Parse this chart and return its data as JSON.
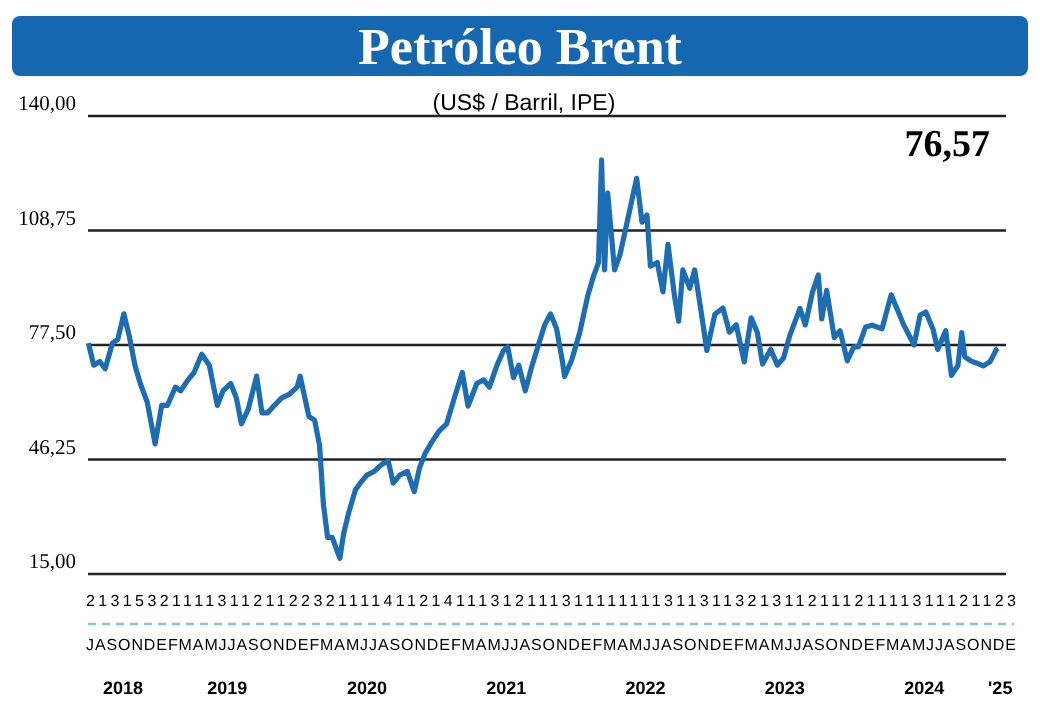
{
  "chart_data": {
    "type": "line",
    "title": "Petróleo Brent",
    "subtitle": "(US$ / Barril, IPE)",
    "annotations": [
      "76,57",
      "2131532111131121122321111411214111312111311111111311311321311211121111311121123",
      "JASONDEFMAMJJASONDEFMAMJJASONDEFMAMJJASONDEFMAMJJASONDEFMAMJJASONDEFMAMJJASONDE"
    ],
    "xlim": [
      "2018-07-01",
      "2025-01-31"
    ],
    "xticks": [
      {
        "value": "2018-10-01",
        "label": "2018"
      },
      {
        "value": "2019-07-01",
        "label": "2019"
      },
      {
        "value": "2020-07-01",
        "label": "2020"
      },
      {
        "value": "2021-07-01",
        "label": "2021"
      },
      {
        "value": "2022-07-01",
        "label": "2022"
      },
      {
        "value": "2023-07-01",
        "label": "2023"
      },
      {
        "value": "2024-07-01",
        "label": "2024"
      },
      {
        "value": "2025-01-16",
        "label": "'25"
      }
    ],
    "ylim": [
      15,
      140
    ],
    "yticks": [
      {
        "value": 15,
        "label": "15,00"
      },
      {
        "value": 46.25,
        "label": "46,25"
      },
      {
        "value": 77.5,
        "label": "77,50"
      },
      {
        "value": 108.75,
        "label": "108,75"
      },
      {
        "value": 140,
        "label": "140,00"
      }
    ],
    "grid": "y",
    "x": [
      "2018-07-02",
      "2018-07-16",
      "2018-08-01",
      "2018-08-15",
      "2018-09-03",
      "2018-09-17",
      "2018-10-03",
      "2018-10-17",
      "2018-11-01",
      "2018-11-15",
      "2018-12-03",
      "2018-12-24",
      "2019-01-10",
      "2019-01-25",
      "2019-02-15",
      "2019-03-01",
      "2019-03-20",
      "2019-04-05",
      "2019-04-25",
      "2019-05-15",
      "2019-06-05",
      "2019-06-20",
      "2019-07-10",
      "2019-07-25",
      "2019-08-07",
      "2019-08-25",
      "2019-09-16",
      "2019-09-30",
      "2019-10-15",
      "2019-11-01",
      "2019-11-20",
      "2019-12-10",
      "2019-12-31",
      "2020-01-08",
      "2020-01-31",
      "2020-02-15",
      "2020-02-28",
      "2020-03-09",
      "2020-03-20",
      "2020-04-01",
      "2020-04-21",
      "2020-05-01",
      "2020-05-15",
      "2020-06-01",
      "2020-06-15",
      "2020-07-01",
      "2020-07-20",
      "2020-08-10",
      "2020-08-26",
      "2020-09-08",
      "2020-09-25",
      "2020-10-15",
      "2020-11-02",
      "2020-11-16",
      "2020-12-01",
      "2020-12-18",
      "2021-01-06",
      "2021-01-26",
      "2021-02-15",
      "2021-03-08",
      "2021-03-23",
      "2021-04-15",
      "2021-05-03",
      "2021-05-18",
      "2021-06-07",
      "2021-06-24",
      "2021-07-05",
      "2021-07-20",
      "2021-08-03",
      "2021-08-20",
      "2021-09-07",
      "2021-09-28",
      "2021-10-10",
      "2021-10-25",
      "2021-11-10",
      "2021-11-26",
      "2021-12-01",
      "2021-12-20",
      "2022-01-10",
      "2022-01-31",
      "2022-02-14",
      "2022-02-28",
      "2022-03-08",
      "2022-03-16",
      "2022-03-24",
      "2022-04-11",
      "2022-04-25",
      "2022-05-16",
      "2022-06-08",
      "2022-06-22",
      "2022-07-05",
      "2022-07-14",
      "2022-08-01",
      "2022-08-16",
      "2022-08-29",
      "2022-09-15",
      "2022-09-26",
      "2022-10-07",
      "2022-10-25",
      "2022-11-07",
      "2022-11-22",
      "2022-12-09",
      "2022-12-30",
      "2023-01-20",
      "2023-02-06",
      "2023-02-24",
      "2023-03-17",
      "2023-04-04",
      "2023-04-20",
      "2023-05-04",
      "2023-05-25",
      "2023-06-12",
      "2023-06-28",
      "2023-07-14",
      "2023-08-10",
      "2023-08-24",
      "2023-09-12",
      "2023-09-27",
      "2023-10-06",
      "2023-10-19",
      "2023-11-08",
      "2023-11-23",
      "2023-12-12",
      "2023-12-29",
      "2024-01-10",
      "2024-01-29",
      "2024-02-15",
      "2024-03-12",
      "2024-04-05",
      "2024-04-22",
      "2024-05-07",
      "2024-06-04",
      "2024-06-20",
      "2024-07-05",
      "2024-07-24",
      "2024-08-05",
      "2024-08-26",
      "2024-09-10",
      "2024-09-27",
      "2024-10-07",
      "2024-10-15",
      "2024-11-01",
      "2024-11-14",
      "2024-12-02",
      "2024-12-20",
      "2025-01-06",
      "2025-01-10"
    ],
    "series": [
      {
        "color": "#1c6db3",
        "values": [
          78,
          72,
          73,
          71,
          78,
          79,
          86,
          80,
          72,
          67,
          62,
          50.5,
          61,
          61,
          66,
          65,
          68,
          70,
          75,
          72,
          61,
          65,
          67,
          63,
          56,
          60,
          69,
          59,
          59,
          61,
          63,
          64,
          66,
          69,
          58,
          57,
          50,
          34,
          25,
          25,
          19.3,
          26,
          32,
          38,
          40,
          42,
          43,
          45,
          45.8,
          39.8,
          42,
          43,
          37.5,
          44,
          48,
          51,
          54,
          56,
          63,
          70,
          60.8,
          67,
          68,
          66,
          72,
          76,
          77,
          68.6,
          72,
          65,
          72,
          79,
          83,
          86,
          82,
          72.7,
          68.9,
          73.5,
          81,
          91,
          96,
          100,
          128,
          98,
          119,
          98,
          102,
          112,
          123,
          111,
          113,
          99,
          100,
          92,
          105,
          91,
          84,
          98,
          93,
          98,
          88,
          76,
          85.9,
          87.6,
          81,
          83,
          72.9,
          84.9,
          81,
          72.3,
          76.3,
          72,
          74,
          80,
          87.5,
          83,
          92,
          96.6,
          84.6,
          92.4,
          79.5,
          81.4,
          73.2,
          77,
          77,
          82.4,
          82.9,
          81.9,
          91.2,
          87,
          83.2,
          77.5,
          85.7,
          86.5,
          81.7,
          76.3,
          81.4,
          69.2,
          71.9,
          80.9,
          74.3,
          73.1,
          72.6,
          71.8,
          72.9,
          76.3,
          76.6
        ]
      }
    ]
  }
}
